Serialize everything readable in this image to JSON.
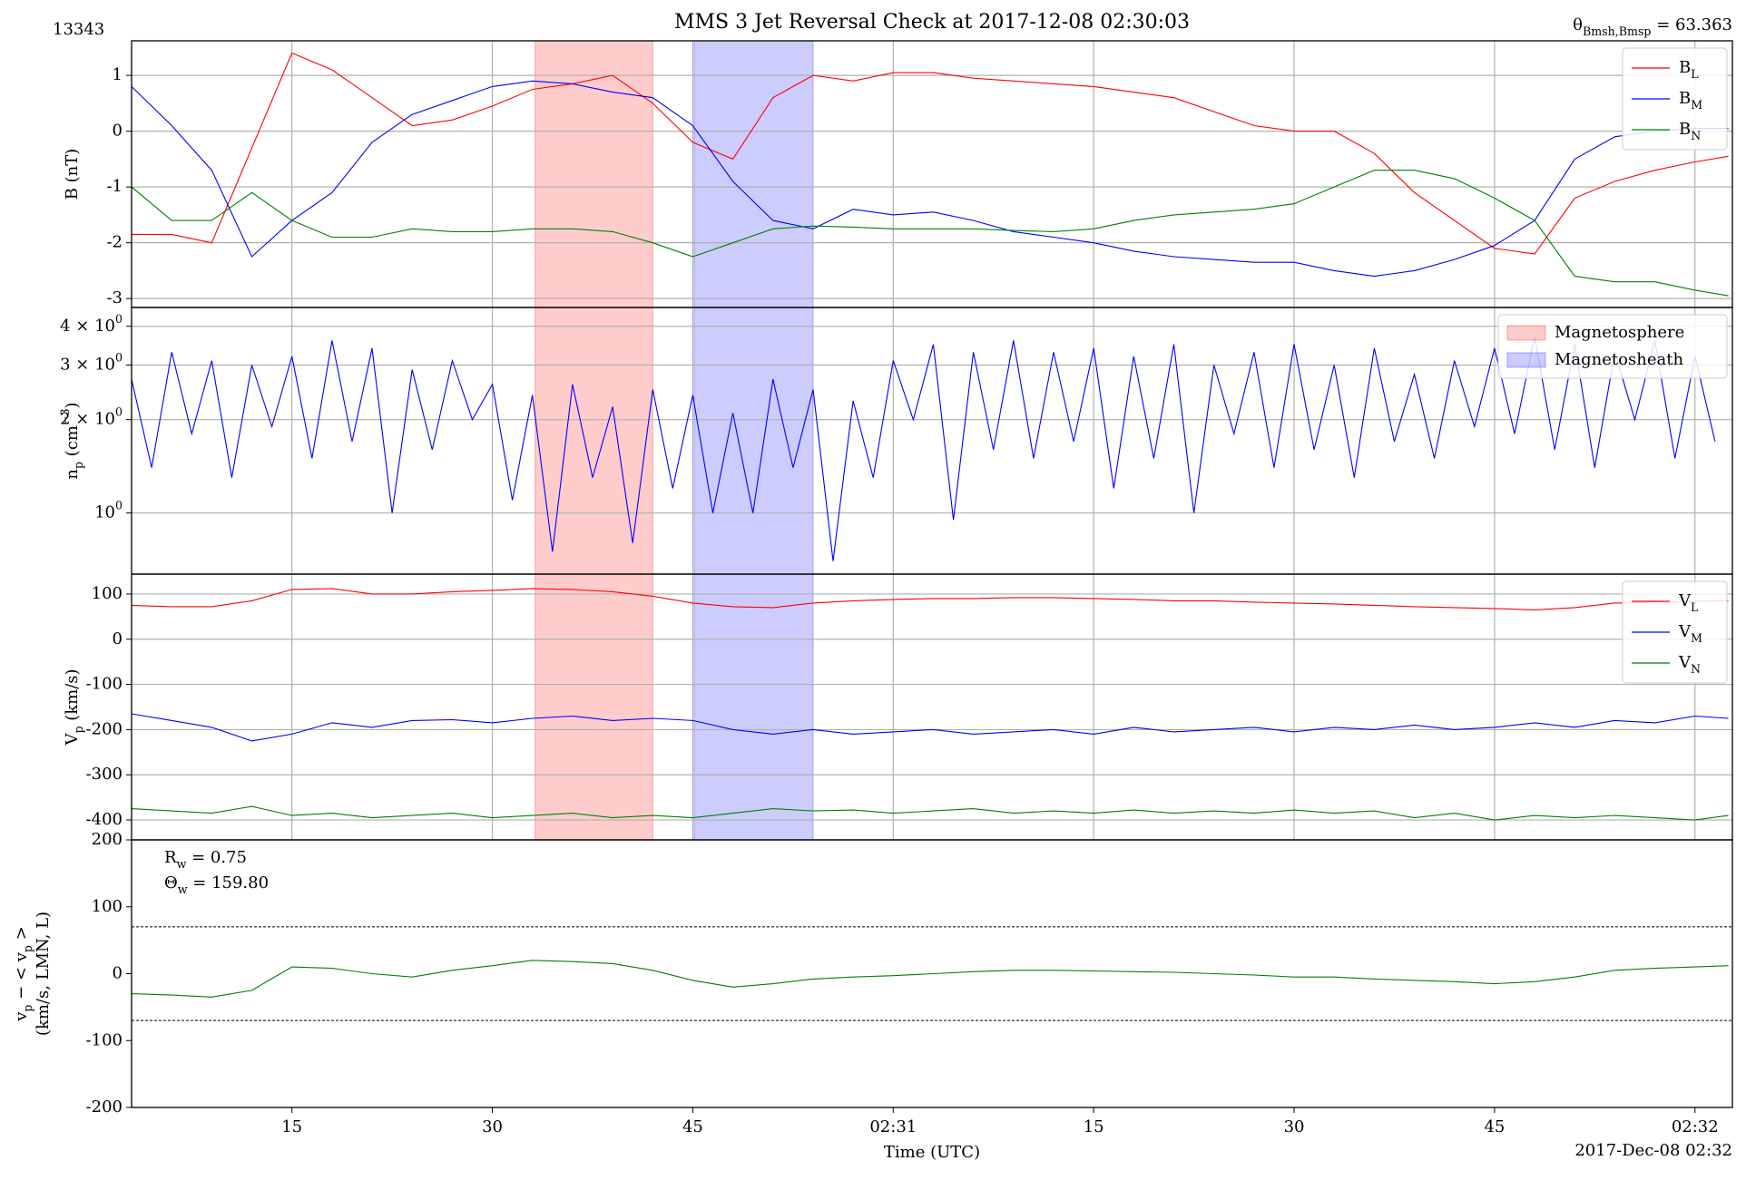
{
  "chart_data": [
    {
      "type": "line",
      "title": "MMS 3 Jet Reversal Check at 2017-12-08 02:30:03",
      "annotations": [
        {
          "text": "13343",
          "color": "#ff0000"
        },
        {
          "text": "θ_{Bmsh,Bmsp} = 63.363",
          "color": "#ff0000"
        }
      ],
      "ylabel": "B (nT)",
      "ylim": [
        -3.16,
        1.62
      ],
      "yticks": [
        -3,
        -2,
        -1,
        0,
        1
      ],
      "grid": true,
      "legend": "upper right",
      "x": [
        3,
        6,
        9,
        12,
        15,
        18,
        21,
        24,
        27,
        30,
        33,
        36,
        39,
        42,
        45,
        48,
        51,
        54,
        57,
        60,
        63,
        66,
        69,
        72,
        75,
        78,
        81,
        84,
        87,
        90,
        93,
        96,
        99,
        102,
        105,
        108,
        111,
        114,
        117,
        120,
        122.5
      ],
      "series": [
        {
          "name": "B_L",
          "color": "#ff0000",
          "values": [
            -1.85,
            -1.85,
            -2.0,
            -0.3,
            1.4,
            1.1,
            0.6,
            0.1,
            0.2,
            0.45,
            0.75,
            0.85,
            1.0,
            0.5,
            -0.2,
            -0.5,
            0.6,
            1.0,
            0.9,
            1.05,
            1.05,
            0.95,
            0.9,
            0.85,
            0.8,
            0.7,
            0.6,
            0.35,
            0.1,
            0.0,
            0.0,
            -0.4,
            -1.1,
            -1.6,
            -2.1,
            -2.2,
            -1.2,
            -0.9,
            -0.7,
            -0.55,
            -0.45
          ]
        },
        {
          "name": "B_M",
          "color": "#0000ff",
          "values": [
            0.8,
            0.1,
            -0.7,
            -2.25,
            -1.6,
            -1.1,
            -0.2,
            0.3,
            0.55,
            0.8,
            0.9,
            0.85,
            0.7,
            0.6,
            0.1,
            -0.9,
            -1.6,
            -1.75,
            -1.4,
            -1.5,
            -1.45,
            -1.6,
            -1.8,
            -1.9,
            -2.0,
            -2.15,
            -2.25,
            -2.3,
            -2.35,
            -2.35,
            -2.5,
            -2.6,
            -2.5,
            -2.3,
            -2.05,
            -1.6,
            -0.5,
            -0.1,
            0.0,
            0.05,
            0.05
          ]
        },
        {
          "name": "B_N",
          "color": "#008000",
          "values": [
            -1.0,
            -1.6,
            -1.6,
            -1.1,
            -1.6,
            -1.9,
            -1.9,
            -1.75,
            -1.8,
            -1.8,
            -1.75,
            -1.75,
            -1.8,
            -2.0,
            -2.25,
            -2.0,
            -1.75,
            -1.7,
            -1.72,
            -1.75,
            -1.75,
            -1.75,
            -1.78,
            -1.8,
            -1.75,
            -1.6,
            -1.5,
            -1.45,
            -1.4,
            -1.3,
            -1.0,
            -0.7,
            -0.7,
            -0.85,
            -1.2,
            -1.6,
            -2.6,
            -2.7,
            -2.7,
            -2.85,
            -2.95
          ]
        }
      ]
    },
    {
      "type": "line",
      "ylabel": "n_p (cm^{−3})",
      "yscale": "log",
      "ylim": [
        0.635,
        4.6
      ],
      "grid": true,
      "legend": "upper right",
      "yticks": [
        {
          "value": 1,
          "label": "10^0"
        },
        {
          "value": 2,
          "label": "2 × 10^0"
        },
        {
          "value": 3,
          "label": "3 × 10^0"
        },
        {
          "value": 4,
          "label": "4 × 10^0"
        }
      ],
      "spans": [
        {
          "name": "Magnetosphere",
          "color": "#ff0000",
          "range": [
            33.2,
            42
          ]
        },
        {
          "name": "Magnetosheath",
          "color": "#0000ff",
          "range": [
            45.1,
            54
          ]
        }
      ],
      "x": [
        3,
        4.5,
        6,
        7.5,
        9,
        10.5,
        12,
        13.5,
        15,
        16.5,
        18,
        19.5,
        21,
        22.5,
        24,
        25.5,
        27,
        28.5,
        30,
        31.5,
        33,
        34.5,
        36,
        37.5,
        39,
        40.5,
        42,
        43.5,
        45,
        46.5,
        48,
        49.5,
        51,
        52.5,
        54,
        55.5,
        57,
        58.5,
        60,
        61.5,
        63,
        64.5,
        66,
        67.5,
        69,
        70.5,
        72,
        73.5,
        75,
        76.5,
        78,
        79.5,
        81,
        82.5,
        84,
        85.5,
        87,
        88.5,
        90,
        91.5,
        93,
        94.5,
        96,
        97.5,
        99,
        100.5,
        102,
        103.5,
        105,
        106.5,
        108,
        109.5,
        111,
        112.5,
        114,
        115.5,
        117,
        118.5,
        120,
        121.5
      ],
      "series": [
        {
          "color": "#0000ff",
          "values": [
            2.7,
            1.4,
            3.3,
            1.8,
            3.1,
            1.3,
            3.0,
            1.9,
            3.2,
            1.5,
            3.6,
            1.7,
            3.4,
            1.0,
            2.9,
            1.6,
            3.1,
            2.0,
            2.6,
            1.1,
            2.4,
            0.75,
            2.6,
            1.3,
            2.2,
            0.8,
            2.5,
            1.2,
            2.4,
            1.0,
            2.1,
            1.0,
            2.7,
            1.4,
            2.5,
            0.7,
            2.3,
            1.3,
            3.1,
            2.0,
            3.5,
            0.95,
            3.3,
            1.6,
            3.6,
            1.5,
            3.3,
            1.7,
            3.4,
            1.2,
            3.2,
            1.5,
            3.5,
            1.0,
            3.0,
            1.8,
            3.3,
            1.4,
            3.5,
            1.6,
            3.0,
            1.3,
            3.4,
            1.7,
            2.8,
            1.5,
            3.1,
            1.9,
            3.4,
            1.8,
            3.7,
            1.6,
            3.5,
            1.4,
            3.3,
            2.0,
            3.6,
            1.5,
            3.2,
            1.7
          ]
        }
      ]
    },
    {
      "type": "line",
      "ylabel": "V_p (km/s)",
      "ylim": [
        -444,
        144
      ],
      "yticks": [
        -400,
        -300,
        -200,
        -100,
        0,
        100
      ],
      "grid": true,
      "legend": "upper right",
      "x": [
        3,
        6,
        9,
        12,
        15,
        18,
        21,
        24,
        27,
        30,
        33,
        36,
        39,
        42,
        45,
        48,
        51,
        54,
        57,
        60,
        63,
        66,
        69,
        72,
        75,
        78,
        81,
        84,
        87,
        90,
        93,
        96,
        99,
        102,
        105,
        108,
        111,
        114,
        117,
        120,
        122.5
      ],
      "series": [
        {
          "name": "V_L",
          "color": "#ff0000",
          "values": [
            75,
            72,
            72,
            85,
            110,
            112,
            100,
            100,
            105,
            108,
            112,
            110,
            105,
            95,
            80,
            72,
            70,
            80,
            85,
            88,
            90,
            90,
            92,
            92,
            90,
            88,
            85,
            85,
            82,
            80,
            78,
            75,
            72,
            70,
            68,
            65,
            70,
            80,
            82,
            84,
            85
          ]
        },
        {
          "name": "V_M",
          "color": "#0000ff",
          "values": [
            -165,
            -180,
            -195,
            -225,
            -210,
            -185,
            -195,
            -180,
            -178,
            -185,
            -175,
            -170,
            -180,
            -175,
            -180,
            -200,
            -210,
            -200,
            -210,
            -205,
            -200,
            -210,
            -205,
            -200,
            -210,
            -195,
            -205,
            -200,
            -195,
            -205,
            -195,
            -200,
            -190,
            -200,
            -195,
            -185,
            -195,
            -180,
            -185,
            -170,
            -175
          ]
        },
        {
          "name": "V_N",
          "color": "#008000",
          "values": [
            -375,
            -380,
            -385,
            -370,
            -390,
            -385,
            -395,
            -390,
            -385,
            -395,
            -390,
            -385,
            -395,
            -390,
            -395,
            -385,
            -375,
            -380,
            -378,
            -385,
            -380,
            -375,
            -385,
            -380,
            -385,
            -378,
            -385,
            -380,
            -385,
            -378,
            -385,
            -380,
            -395,
            -385,
            -400,
            -390,
            -395,
            -390,
            -395,
            -400,
            -390
          ]
        }
      ]
    },
    {
      "type": "line",
      "ylabel": [
        "v_p − < v_p >",
        "(km/s, LMN, L)"
      ],
      "ylim": [
        -200,
        200
      ],
      "yticks": [
        -200,
        -100,
        0,
        100,
        200
      ],
      "grid": false,
      "annotations": [
        {
          "text": "R_w = 0.75"
        },
        {
          "text": "Θ_w = 159.80"
        }
      ],
      "hlines": [
        70,
        -70
      ],
      "xlabel": "Time (UTC)",
      "xcorner": "2017-Dec-08 02:32",
      "xlim": [
        3,
        122.8
      ],
      "xticks": [
        15,
        30,
        45,
        {
          "value": 60,
          "label": "02:31"
        },
        {
          "value": 75,
          "label": "15"
        },
        {
          "value": 90,
          "label": "30"
        },
        {
          "value": 105,
          "label": "45"
        },
        {
          "value": 120,
          "label": "02:32"
        }
      ],
      "x": [
        3,
        6,
        9,
        12,
        15,
        18,
        21,
        24,
        27,
        30,
        33,
        36,
        39,
        42,
        45,
        48,
        51,
        54,
        57,
        60,
        63,
        66,
        69,
        72,
        75,
        78,
        81,
        84,
        87,
        90,
        93,
        96,
        99,
        102,
        105,
        108,
        111,
        114,
        117,
        120,
        122.5
      ],
      "series": [
        {
          "color": "#008000",
          "values": [
            -30,
            -32,
            -35,
            -25,
            10,
            8,
            0,
            -5,
            5,
            12,
            20,
            18,
            15,
            5,
            -10,
            -20,
            -15,
            -8,
            -5,
            -3,
            0,
            3,
            5,
            5,
            4,
            3,
            2,
            0,
            -2,
            -5,
            -5,
            -8,
            -10,
            -12,
            -15,
            -12,
            -5,
            5,
            8,
            10,
            12
          ]
        }
      ]
    }
  ]
}
